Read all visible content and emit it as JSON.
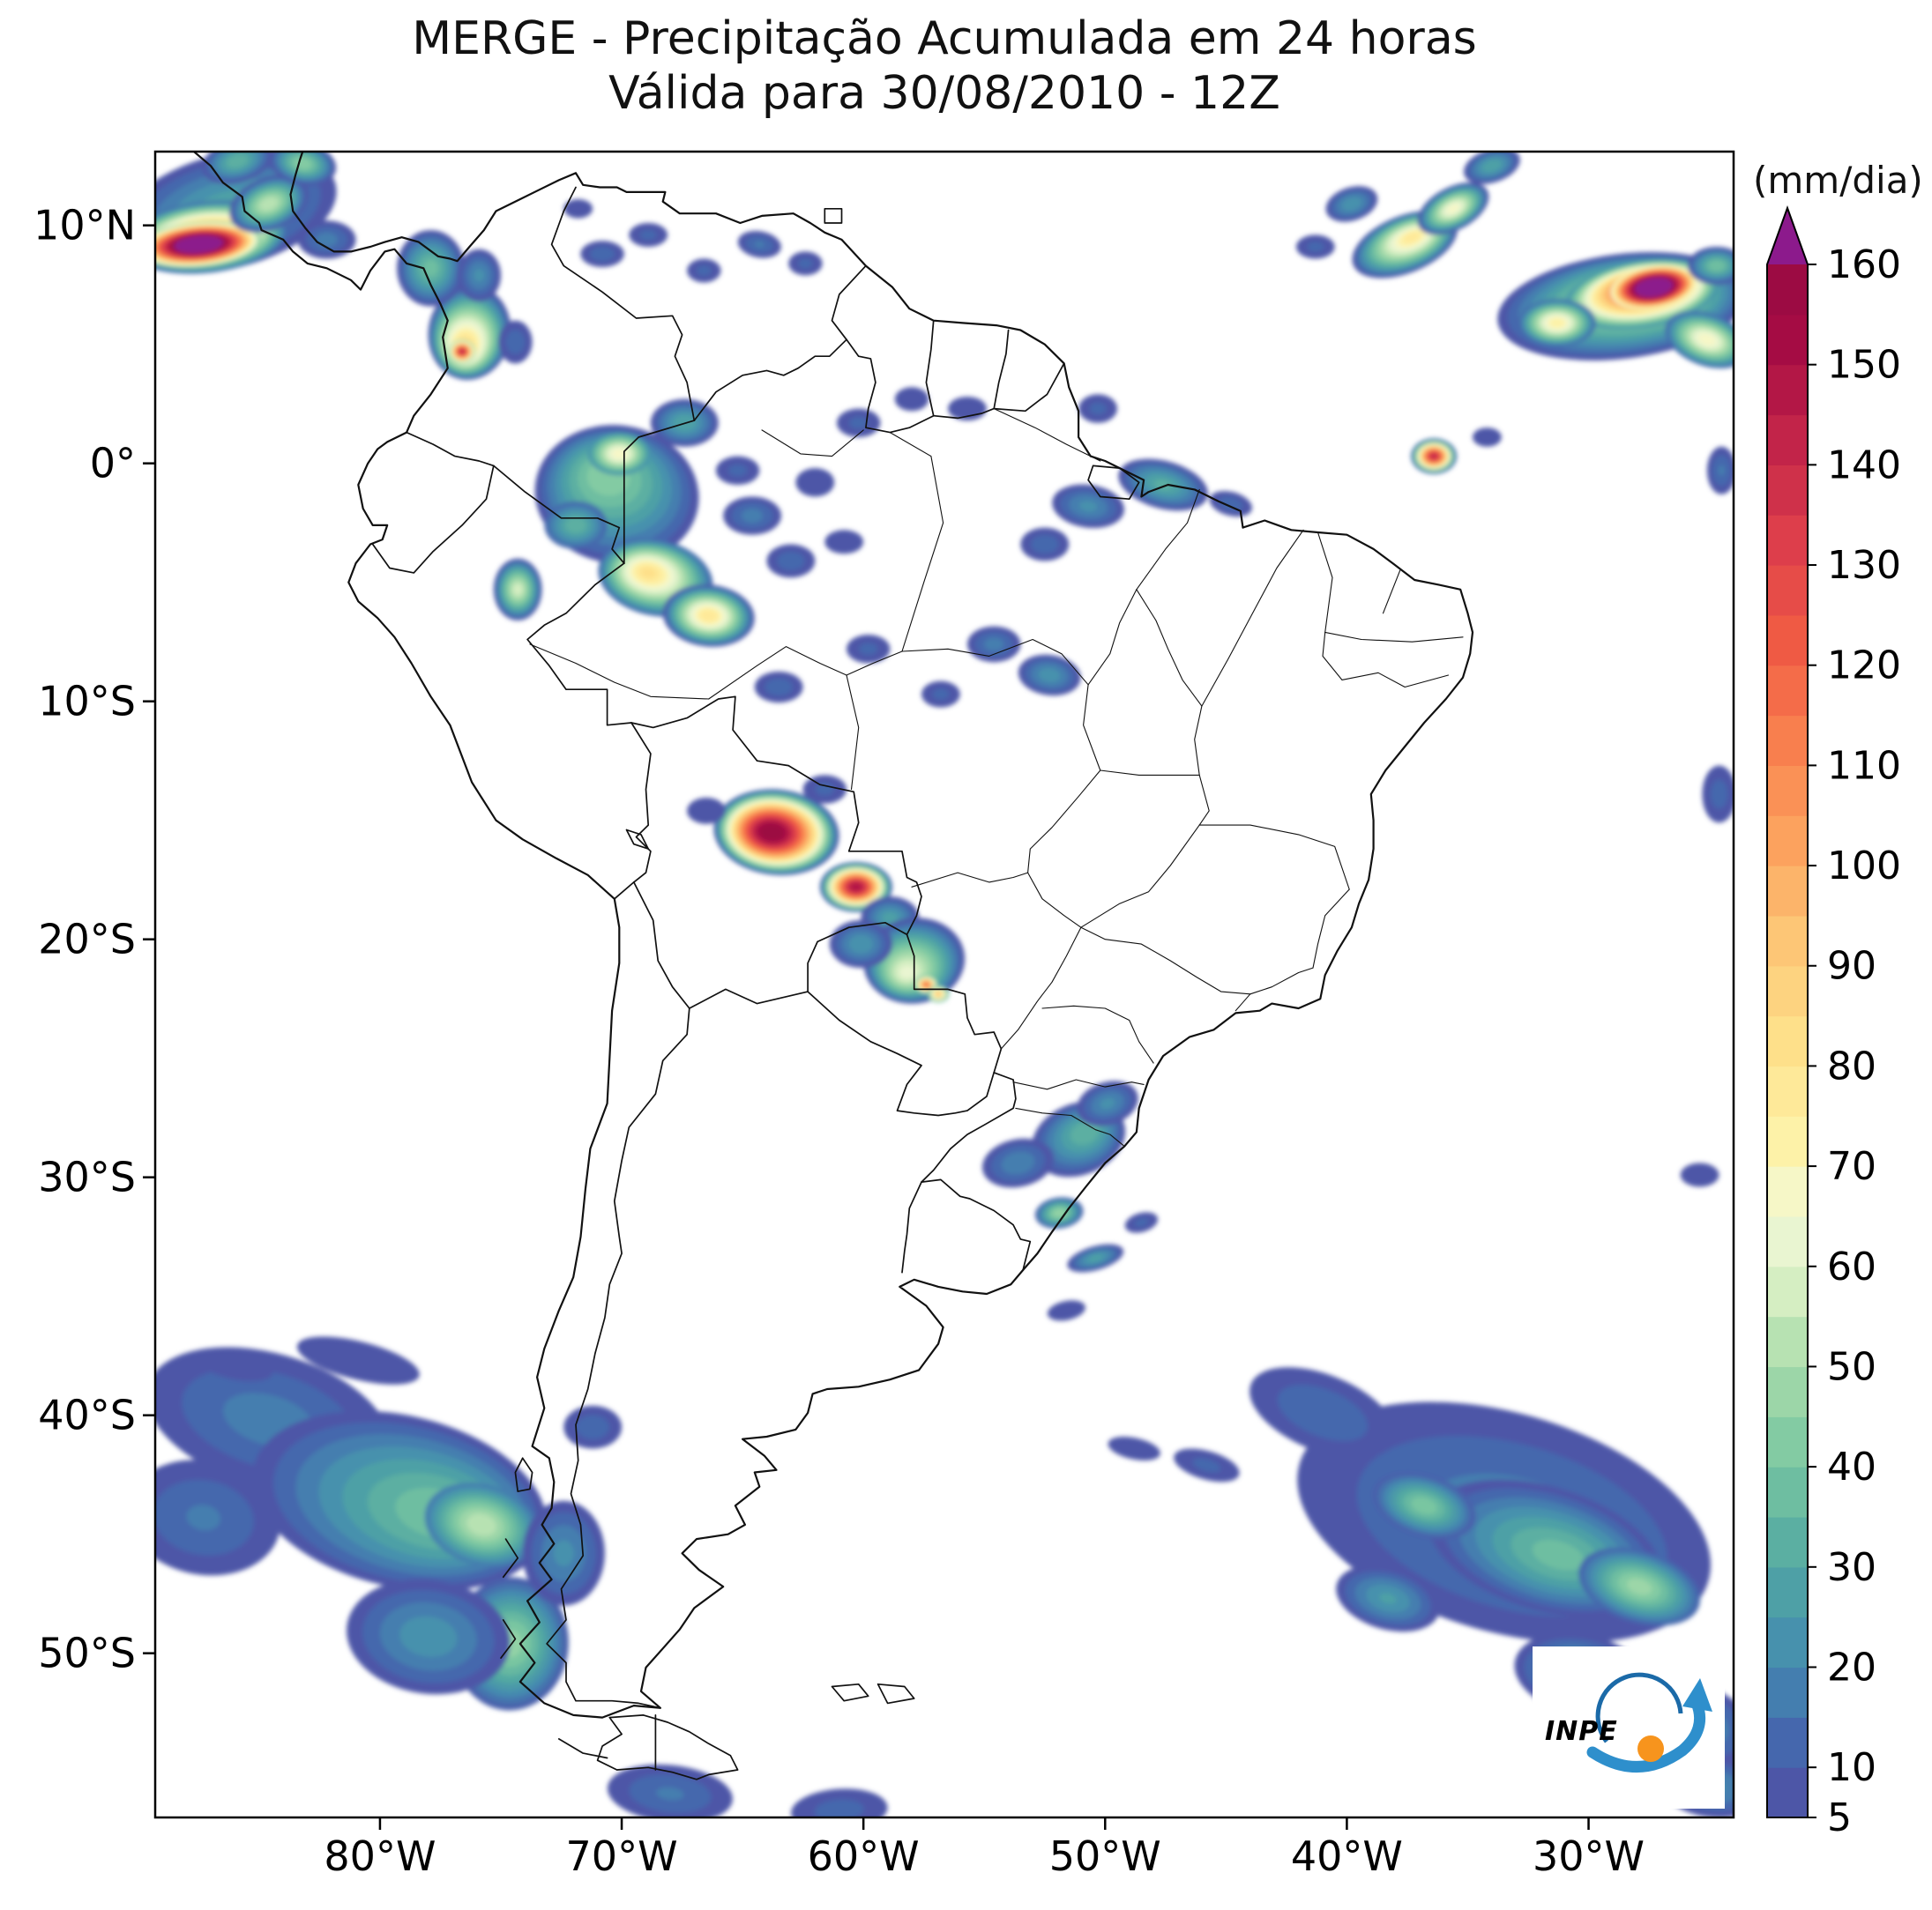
{
  "figure": {
    "title_line1": "MERGE - Precipitação Acumulada em 24 horas",
    "title_line2": "Válida para 30/08/2010 - 12Z"
  },
  "axes": {
    "extent": {
      "west": -89.3,
      "east": -24.0,
      "north": 13.1,
      "south": -56.9
    },
    "x_ticks": [
      {
        "label": "80°W",
        "lon": -80
      },
      {
        "label": "70°W",
        "lon": -70
      },
      {
        "label": "60°W",
        "lon": -60
      },
      {
        "label": "50°W",
        "lon": -50
      },
      {
        "label": "40°W",
        "lon": -40
      },
      {
        "label": "30°W",
        "lon": -30
      }
    ],
    "y_ticks": [
      {
        "label": "10°N",
        "lat": 10
      },
      {
        "label": "0°",
        "lat": 0
      },
      {
        "label": "10°S",
        "lat": -10
      },
      {
        "label": "20°S",
        "lat": -20
      },
      {
        "label": "30°S",
        "lat": -30
      },
      {
        "label": "40°S",
        "lat": -40
      },
      {
        "label": "50°S",
        "lat": -50
      }
    ]
  },
  "colorbar": {
    "unit_label": "(mm/dia)",
    "min": 5,
    "max": 160,
    "boundary_step": 5,
    "tick_values": [
      5,
      10,
      20,
      30,
      40,
      50,
      60,
      70,
      80,
      90,
      100,
      110,
      120,
      130,
      140,
      150,
      160
    ],
    "over_color": "#8c1a8c",
    "stops": [
      {
        "v": 5,
        "c": "#514da4"
      },
      {
        "v": 12,
        "c": "#4565ad"
      },
      {
        "v": 20,
        "c": "#4489b0"
      },
      {
        "v": 30,
        "c": "#51a8a2"
      },
      {
        "v": 40,
        "c": "#77c5a0"
      },
      {
        "v": 50,
        "c": "#a8dcaa"
      },
      {
        "v": 58,
        "c": "#d8efc4"
      },
      {
        "v": 65,
        "c": "#f2f9d8"
      },
      {
        "v": 72,
        "c": "#fdf3a9"
      },
      {
        "v": 82,
        "c": "#fee18b"
      },
      {
        "v": 92,
        "c": "#fdc877"
      },
      {
        "v": 102,
        "c": "#fca45f"
      },
      {
        "v": 112,
        "c": "#f8814e"
      },
      {
        "v": 122,
        "c": "#f05b44"
      },
      {
        "v": 132,
        "c": "#de3f4b"
      },
      {
        "v": 142,
        "c": "#c32549"
      },
      {
        "v": 152,
        "c": "#a60c44"
      },
      {
        "v": 160,
        "c": "#970a42"
      }
    ]
  },
  "precipitation": {
    "unit": "mm/dia",
    "features": [
      {
        "lon": -86.3,
        "lat": 10.6,
        "rx": 4.6,
        "ry": 2.4,
        "rot": -14,
        "peak": 30
      },
      {
        "lon": -87.2,
        "lat": 9.5,
        "rx": 3.4,
        "ry": 1.5,
        "rot": -6,
        "peak": 95,
        "base": 10,
        "floor": 0.28
      },
      {
        "lon": -87.5,
        "lat": 9.2,
        "rx": 2.6,
        "ry": 0.95,
        "rot": -5,
        "peak": 170,
        "base": 40,
        "floor": 0.3
      },
      {
        "lon": -84.6,
        "lat": 10.9,
        "rx": 1.7,
        "ry": 1.1,
        "rot": -22,
        "peak": 55
      },
      {
        "lon": -85.9,
        "lat": 12.7,
        "rx": 1.5,
        "ry": 0.9,
        "rot": -16,
        "peak": 35
      },
      {
        "lon": -83.2,
        "lat": 12.6,
        "rx": 1.4,
        "ry": 0.9,
        "rot": 12,
        "peak": 45
      },
      {
        "lon": -82.2,
        "lat": 9.4,
        "rx": 1.2,
        "ry": 0.8,
        "rot": 0,
        "peak": 18
      },
      {
        "lon": -76.3,
        "lat": 5.5,
        "rx": 1.7,
        "ry": 2.0,
        "rot": 10,
        "peak": 85,
        "drift": [
          -0.2,
          -0.6
        ]
      },
      {
        "lon": -76.6,
        "lat": 4.7,
        "rx": 0.55,
        "ry": 0.5,
        "rot": 0,
        "peak": 145,
        "base": 40
      },
      {
        "lon": -77.9,
        "lat": 8.2,
        "rx": 1.4,
        "ry": 1.6,
        "rot": 0,
        "peak": 38
      },
      {
        "lon": -75.9,
        "lat": 7.9,
        "rx": 0.9,
        "ry": 1.1,
        "rot": 0,
        "peak": 22
      },
      {
        "lon": -74.4,
        "lat": 5.1,
        "rx": 0.7,
        "ry": 0.9,
        "rot": 0,
        "peak": 14
      },
      {
        "lon": -70.8,
        "lat": 8.8,
        "rx": 0.9,
        "ry": 0.55,
        "rot": 0,
        "peak": 14
      },
      {
        "lon": -68.9,
        "lat": 9.6,
        "rx": 0.8,
        "ry": 0.5,
        "rot": 0,
        "peak": 12
      },
      {
        "lon": -66.6,
        "lat": 8.1,
        "rx": 0.7,
        "ry": 0.5,
        "rot": 0,
        "peak": 12
      },
      {
        "lon": -64.3,
        "lat": 9.2,
        "rx": 0.9,
        "ry": 0.55,
        "rot": 10,
        "peak": 16
      },
      {
        "lon": -62.4,
        "lat": 8.4,
        "rx": 0.7,
        "ry": 0.5,
        "rot": 0,
        "peak": 12
      },
      {
        "lon": -71.8,
        "lat": 10.7,
        "rx": 0.6,
        "ry": 0.4,
        "rot": 0,
        "peak": 10
      },
      {
        "lon": -70.2,
        "lat": -1.3,
        "rx": 3.4,
        "ry": 2.9,
        "rot": 8,
        "peak": 45,
        "drift": [
          -0.4,
          0.8
        ]
      },
      {
        "lon": -70.1,
        "lat": 0.4,
        "rx": 1.3,
        "ry": 0.9,
        "rot": 0,
        "peak": 70,
        "base": 20
      },
      {
        "lon": -71.9,
        "lat": -2.6,
        "rx": 1.3,
        "ry": 1.0,
        "rot": 0,
        "peak": 35,
        "base": 10
      },
      {
        "lon": -68.6,
        "lat": -4.8,
        "rx": 2.4,
        "ry": 1.6,
        "rot": 12,
        "peak": 82,
        "base": 10,
        "drift": [
          -0.3,
          0.2
        ]
      },
      {
        "lon": -66.4,
        "lat": -6.4,
        "rx": 1.9,
        "ry": 1.3,
        "rot": 6,
        "peak": 80
      },
      {
        "lon": -74.3,
        "lat": -5.3,
        "rx": 1.0,
        "ry": 1.3,
        "rot": 0,
        "peak": 58
      },
      {
        "lon": -67.4,
        "lat": 1.7,
        "rx": 1.4,
        "ry": 1.0,
        "rot": 0,
        "peak": 30
      },
      {
        "lon": -64.6,
        "lat": -2.2,
        "rx": 1.2,
        "ry": 0.8,
        "rot": 0,
        "peak": 18
      },
      {
        "lon": -63.0,
        "lat": -4.1,
        "rx": 1.0,
        "ry": 0.7,
        "rot": 0,
        "peak": 14
      },
      {
        "lon": -65.2,
        "lat": -0.3,
        "rx": 0.9,
        "ry": 0.6,
        "rot": 0,
        "peak": 12
      },
      {
        "lon": -62.0,
        "lat": -0.8,
        "rx": 0.8,
        "ry": 0.6,
        "rot": 0,
        "peak": 10
      },
      {
        "lon": -60.2,
        "lat": 1.7,
        "rx": 0.9,
        "ry": 0.6,
        "rot": 0,
        "peak": 12
      },
      {
        "lon": -58.0,
        "lat": 2.7,
        "rx": 0.7,
        "ry": 0.5,
        "rot": 0,
        "peak": 10
      },
      {
        "lon": -55.7,
        "lat": 2.3,
        "rx": 0.8,
        "ry": 0.5,
        "rot": 0,
        "peak": 10
      },
      {
        "lon": -60.8,
        "lat": -3.3,
        "rx": 0.8,
        "ry": 0.5,
        "rot": 0,
        "peak": 10
      },
      {
        "lon": -47.6,
        "lat": -0.9,
        "rx": 1.9,
        "ry": 1.0,
        "rot": 15,
        "peak": 32
      },
      {
        "lon": -50.7,
        "lat": -1.8,
        "rx": 1.5,
        "ry": 0.9,
        "rot": 8,
        "peak": 22
      },
      {
        "lon": -52.5,
        "lat": -3.4,
        "rx": 1.0,
        "ry": 0.7,
        "rot": 0,
        "peak": 14
      },
      {
        "lon": -50.3,
        "lat": 2.3,
        "rx": 0.8,
        "ry": 0.6,
        "rot": 0,
        "peak": 12
      },
      {
        "lon": -44.8,
        "lat": -1.7,
        "rx": 0.9,
        "ry": 0.5,
        "rot": 15,
        "peak": 14
      },
      {
        "lon": -37.6,
        "lat": 9.2,
        "rx": 2.3,
        "ry": 1.2,
        "rot": -22,
        "peak": 78,
        "drift": [
          0.3,
          0.3
        ]
      },
      {
        "lon": -35.6,
        "lat": 10.7,
        "rx": 1.6,
        "ry": 0.9,
        "rot": -28,
        "peak": 68
      },
      {
        "lon": -39.8,
        "lat": 10.9,
        "rx": 1.1,
        "ry": 0.7,
        "rot": -18,
        "peak": 25
      },
      {
        "lon": -41.3,
        "lat": 9.1,
        "rx": 0.8,
        "ry": 0.5,
        "rot": 0,
        "peak": 12
      },
      {
        "lon": -34.0,
        "lat": 12.5,
        "rx": 1.2,
        "ry": 0.7,
        "rot": -18,
        "peak": 30
      },
      {
        "lon": -28.6,
        "lat": 6.6,
        "rx": 5.2,
        "ry": 2.2,
        "rot": -7,
        "peak": 60,
        "drift": [
          0.9,
          0.5
        ]
      },
      {
        "lon": -27.8,
        "lat": 7.1,
        "rx": 3.2,
        "ry": 1.4,
        "rot": -9,
        "peak": 130,
        "base": 20,
        "floor": 0.18,
        "drift": [
          0.2,
          0.3
        ]
      },
      {
        "lon": -27.3,
        "lat": 7.4,
        "rx": 1.8,
        "ry": 0.9,
        "rot": -9,
        "peak": 170,
        "base": 60,
        "floor": 0.35
      },
      {
        "lon": -31.3,
        "lat": 5.9,
        "rx": 1.6,
        "ry": 1.0,
        "rot": 0,
        "peak": 75,
        "base": 10
      },
      {
        "lon": -25.1,
        "lat": 5.2,
        "rx": 1.8,
        "ry": 1.1,
        "rot": 20,
        "peak": 70,
        "base": 10
      },
      {
        "lon": -24.7,
        "lat": 8.3,
        "rx": 1.2,
        "ry": 0.8,
        "rot": 0,
        "peak": 40
      },
      {
        "lon": -36.4,
        "lat": 0.3,
        "rx": 0.95,
        "ry": 0.75,
        "rot": 0,
        "peak": 142
      },
      {
        "lon": -34.2,
        "lat": 1.1,
        "rx": 0.6,
        "ry": 0.4,
        "rot": 0,
        "peak": 10
      },
      {
        "lon": -24.5,
        "lat": -0.3,
        "rx": 0.6,
        "ry": 1.0,
        "rot": 0,
        "peak": 16
      },
      {
        "lon": -54.6,
        "lat": -7.6,
        "rx": 1.1,
        "ry": 0.75,
        "rot": 0,
        "peak": 18
      },
      {
        "lon": -52.3,
        "lat": -8.9,
        "rx": 1.3,
        "ry": 0.85,
        "rot": 8,
        "peak": 24
      },
      {
        "lon": -56.8,
        "lat": -9.7,
        "rx": 0.8,
        "ry": 0.55,
        "rot": 0,
        "peak": 12
      },
      {
        "lon": -59.8,
        "lat": -7.8,
        "rx": 0.9,
        "ry": 0.6,
        "rot": 0,
        "peak": 12
      },
      {
        "lon": -63.5,
        "lat": -9.4,
        "rx": 1.0,
        "ry": 0.65,
        "rot": 0,
        "peak": 14
      },
      {
        "lon": -63.6,
        "lat": -15.5,
        "rx": 2.6,
        "ry": 1.8,
        "rot": 6,
        "peak": 160,
        "floor": 0.13,
        "drift": [
          -0.2,
          0
        ]
      },
      {
        "lon": -61.6,
        "lat": -13.7,
        "rx": 0.9,
        "ry": 0.6,
        "rot": 0,
        "peak": 12
      },
      {
        "lon": -66.5,
        "lat": -14.6,
        "rx": 0.8,
        "ry": 0.55,
        "rot": 0,
        "peak": 10
      },
      {
        "lon": -60.3,
        "lat": -17.8,
        "rx": 1.5,
        "ry": 1.05,
        "rot": 0,
        "peak": 150,
        "floor": 0.1
      },
      {
        "lon": -58.9,
        "lat": -19.1,
        "rx": 1.2,
        "ry": 0.9,
        "rot": 0,
        "peak": 28
      },
      {
        "lon": -57.9,
        "lat": -20.9,
        "rx": 2.1,
        "ry": 1.8,
        "rot": -8,
        "peak": 62,
        "drift": [
          -0.3,
          -0.5
        ]
      },
      {
        "lon": -57.4,
        "lat": -21.9,
        "rx": 0.5,
        "ry": 0.4,
        "rot": 0,
        "peak": 118,
        "base": 30
      },
      {
        "lon": -56.9,
        "lat": -22.3,
        "rx": 0.45,
        "ry": 0.35,
        "rot": 0,
        "peak": 95,
        "base": 30
      },
      {
        "lon": -60.1,
        "lat": -20.2,
        "rx": 1.3,
        "ry": 1.0,
        "rot": 0,
        "peak": 25
      },
      {
        "lon": -51.1,
        "lat": -28.4,
        "rx": 2.0,
        "ry": 1.5,
        "rot": -22,
        "peak": 35,
        "drift": [
          0.3,
          0.3
        ]
      },
      {
        "lon": -49.9,
        "lat": -26.9,
        "rx": 1.3,
        "ry": 0.9,
        "rot": -18,
        "peak": 22
      },
      {
        "lon": -53.6,
        "lat": -29.4,
        "rx": 1.5,
        "ry": 1.0,
        "rot": -12,
        "peak": 20
      },
      {
        "lon": -51.9,
        "lat": -31.5,
        "rx": 1.0,
        "ry": 0.65,
        "rot": -8,
        "peak": 48,
        "base": 8
      },
      {
        "lon": -50.4,
        "lat": -33.4,
        "rx": 1.2,
        "ry": 0.5,
        "rot": -16,
        "peak": 28
      },
      {
        "lon": -48.5,
        "lat": -31.9,
        "rx": 0.7,
        "ry": 0.4,
        "rot": -16,
        "peak": 12
      },
      {
        "lon": -51.6,
        "lat": -35.6,
        "rx": 0.8,
        "ry": 0.4,
        "rot": -12,
        "peak": 10
      },
      {
        "lon": -84.6,
        "lat": -40.2,
        "rx": 5.2,
        "ry": 2.8,
        "rot": 16,
        "peak": 18
      },
      {
        "lon": -79.2,
        "lat": -43.6,
        "rx": 6.2,
        "ry": 3.6,
        "rot": 13,
        "peak": 40,
        "drift": [
          1.8,
          -0.6
        ]
      },
      {
        "lon": -75.8,
        "lat": -44.6,
        "rx": 2.4,
        "ry": 1.7,
        "rot": 16,
        "peak": 55,
        "base": 15
      },
      {
        "lon": -74.6,
        "lat": -49.6,
        "rx": 2.4,
        "ry": 2.8,
        "rot": 4,
        "peak": 46,
        "base": 8
      },
      {
        "lon": -78.0,
        "lat": -49.3,
        "rx": 3.4,
        "ry": 2.4,
        "rot": 8,
        "peak": 24
      },
      {
        "lon": -87.3,
        "lat": -44.3,
        "rx": 3.2,
        "ry": 2.4,
        "rot": 10,
        "peak": 16
      },
      {
        "lon": -72.4,
        "lat": -45.8,
        "rx": 1.7,
        "ry": 2.2,
        "rot": 0,
        "peak": 22
      },
      {
        "lon": -80.9,
        "lat": -37.7,
        "rx": 2.6,
        "ry": 0.8,
        "rot": 14,
        "peak": 10
      },
      {
        "lon": -86.0,
        "lat": -37.9,
        "rx": 1.6,
        "ry": 0.6,
        "rot": 12,
        "peak": 9
      },
      {
        "lon": -71.2,
        "lat": -40.5,
        "rx": 1.2,
        "ry": 0.9,
        "rot": 0,
        "peak": 14
      },
      {
        "lon": -68.0,
        "lat": -55.9,
        "rx": 2.6,
        "ry": 1.2,
        "rot": 6,
        "peak": 16
      },
      {
        "lon": -61.0,
        "lat": -56.6,
        "rx": 2.0,
        "ry": 0.9,
        "rot": -4,
        "peak": 13
      },
      {
        "lon": -33.5,
        "lat": -44.5,
        "rx": 8.8,
        "ry": 4.6,
        "rot": 16,
        "peak": 20,
        "drift": [
          1.0,
          -0.5
        ]
      },
      {
        "lon": -31.8,
        "lat": -45.6,
        "rx": 5.0,
        "ry": 2.6,
        "rot": 17,
        "peak": 38,
        "drift": [
          0.6,
          -0.3
        ]
      },
      {
        "lon": -27.9,
        "lat": -47.2,
        "rx": 2.6,
        "ry": 1.5,
        "rot": 18,
        "peak": 48,
        "base": 10
      },
      {
        "lon": -36.8,
        "lat": -43.8,
        "rx": 2.2,
        "ry": 1.3,
        "rot": 18,
        "peak": 42,
        "base": 8
      },
      {
        "lon": -41.0,
        "lat": -39.9,
        "rx": 3.2,
        "ry": 1.6,
        "rot": 22,
        "peak": 15
      },
      {
        "lon": -45.8,
        "lat": -42.1,
        "rx": 1.4,
        "ry": 0.6,
        "rot": 16,
        "peak": 12
      },
      {
        "lon": -48.8,
        "lat": -41.4,
        "rx": 1.1,
        "ry": 0.45,
        "rot": 12,
        "peak": 10
      },
      {
        "lon": -38.3,
        "lat": -47.7,
        "rx": 2.2,
        "ry": 1.3,
        "rot": 16,
        "peak": 26
      },
      {
        "lon": -30.3,
        "lat": -50.9,
        "rx": 2.8,
        "ry": 1.7,
        "rot": 12,
        "peak": 30
      },
      {
        "lon": -26.2,
        "lat": -52.9,
        "rx": 3.2,
        "ry": 1.8,
        "rot": 14,
        "peak": 26
      },
      {
        "lon": -24.9,
        "lat": -55.6,
        "rx": 2.2,
        "ry": 1.3,
        "rot": 8,
        "peak": 22
      },
      {
        "lon": -24.6,
        "lat": -13.9,
        "rx": 0.7,
        "ry": 1.2,
        "rot": 0,
        "peak": 13
      },
      {
        "lon": -25.4,
        "lat": -29.9,
        "rx": 0.8,
        "ry": 0.5,
        "rot": 0,
        "peak": 10
      }
    ]
  },
  "logo": {
    "text": "INPE",
    "blue": "#1b6aa8",
    "light_blue": "#2e8fcc",
    "orange": "#f7941d"
  }
}
